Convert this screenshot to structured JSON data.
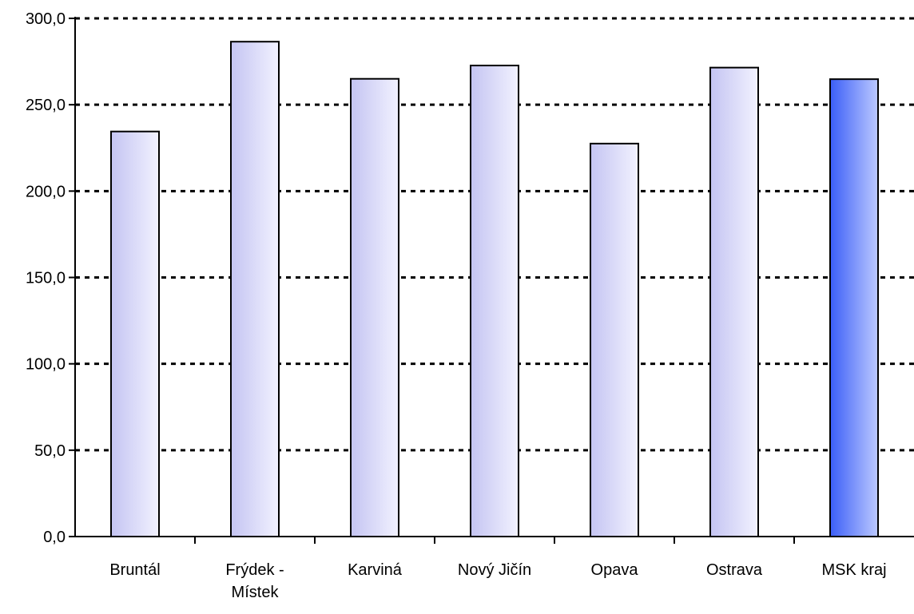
{
  "chart_data": {
    "type": "bar",
    "categories": [
      [
        "Bruntál"
      ],
      [
        "Frýdek -",
        "Místek"
      ],
      [
        "Karviná"
      ],
      [
        "Nový Jičín"
      ],
      [
        "Opava"
      ],
      [
        "Ostrava"
      ],
      [
        "MSK kraj"
      ]
    ],
    "values": [
      234.5,
      286.5,
      265.0,
      272.7,
      227.5,
      271.5,
      264.8
    ],
    "highlight_index": 6,
    "ylim": [
      0,
      300
    ],
    "yticks": [
      0,
      50,
      100,
      150,
      200,
      250,
      300
    ],
    "ytick_labels": [
      "0,0",
      "50,0",
      "100,0",
      "150,0",
      "200,0",
      "250,0",
      "300,0"
    ],
    "grid": true,
    "grid_style": "dotted",
    "colors": {
      "bar_gradient_start": "#c4c4f2",
      "bar_gradient_end": "#f2f2ff",
      "highlight_gradient_start": "#3b5ef7",
      "highlight_gradient_end": "#bcc9ff",
      "bar_stroke": "#000000",
      "axis": "#000000",
      "grid": "#000000"
    },
    "title": "",
    "xlabel": "",
    "ylabel": ""
  }
}
